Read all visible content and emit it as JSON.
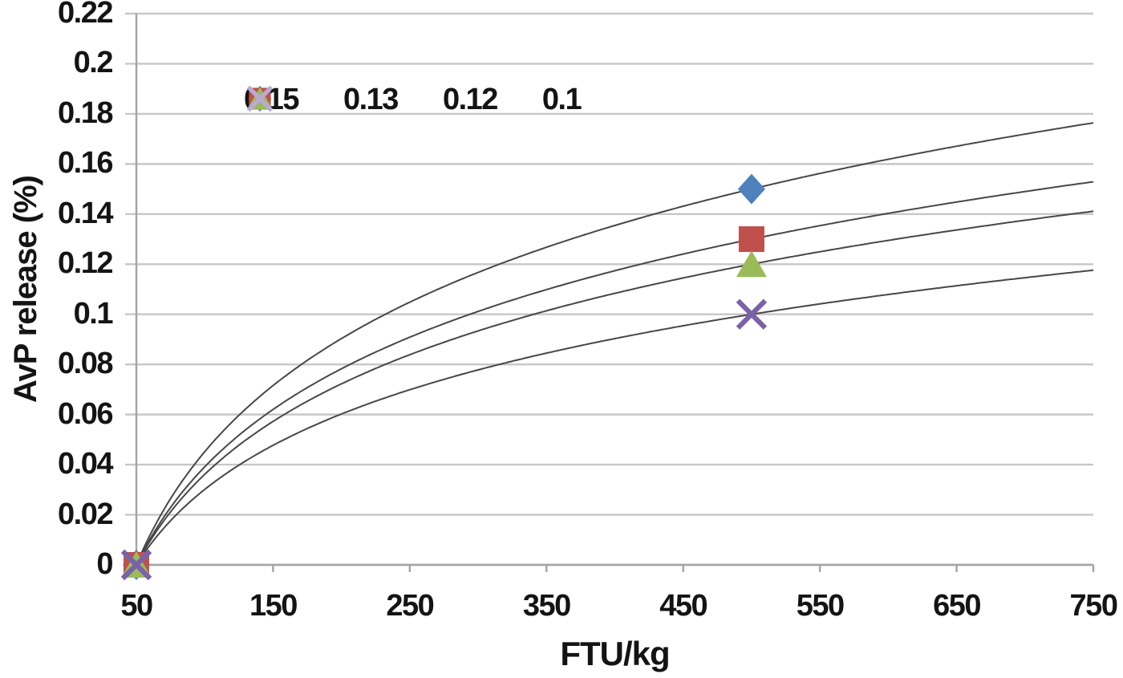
{
  "chart_data": {
    "type": "scatter",
    "title": "",
    "xlabel": "FTU/kg",
    "ylabel": "AvP release (%)",
    "xlim": [
      50,
      750
    ],
    "ylim": [
      0,
      0.22
    ],
    "x_tick_labels": [
      "50",
      "150",
      "250",
      "350",
      "450",
      "550",
      "650",
      "750"
    ],
    "y_tick_labels": [
      "0",
      "0.02",
      "0.04",
      "0.06",
      "0.08",
      "0.1",
      "0.12",
      "0.14",
      "0.16",
      "0.18",
      "0.2",
      "0.22"
    ],
    "grid": "horizontal",
    "legend_position": "top-inside",
    "series": [
      {
        "name": "0.15",
        "marker": "diamond",
        "color": "#4f81bd",
        "legend_color": "#4f81bd",
        "points": [
          [
            50,
            0
          ],
          [
            500,
            0.15
          ]
        ]
      },
      {
        "name": "0.13",
        "marker": "square",
        "color": "#c0504d",
        "legend_color": "#c0504d",
        "points": [
          [
            50,
            0
          ],
          [
            500,
            0.13
          ]
        ]
      },
      {
        "name": "0.12",
        "marker": "triangle",
        "color": "#9bbb59",
        "legend_color": "#9bbb59",
        "points": [
          [
            50,
            0
          ],
          [
            500,
            0.12
          ]
        ]
      },
      {
        "name": "0.1",
        "marker": "x",
        "color": "#7a62a8",
        "legend_color": "#b9a9d6",
        "points": [
          [
            50,
            0
          ],
          [
            500,
            0.1
          ]
        ]
      }
    ],
    "trendlines": [
      {
        "series": "0.15",
        "type": "logarithmic",
        "k": 0.15,
        "start": [
          50,
          0
        ],
        "y_at_750": 0.177
      },
      {
        "series": "0.13",
        "type": "logarithmic",
        "k": 0.13,
        "start": [
          50,
          0
        ],
        "y_at_750": 0.153
      },
      {
        "series": "0.12",
        "type": "logarithmic",
        "k": 0.12,
        "start": [
          50,
          0
        ],
        "y_at_750": 0.141
      },
      {
        "series": "0.1",
        "type": "logarithmic",
        "k": 0.1,
        "start": [
          50,
          0
        ],
        "y_at_750": 0.118
      }
    ],
    "colors": {
      "gridline": "#c7c7c7",
      "axis": "#a4a4a4",
      "trendline": "#474747",
      "text": "#141414",
      "background": "#ffffff"
    }
  }
}
